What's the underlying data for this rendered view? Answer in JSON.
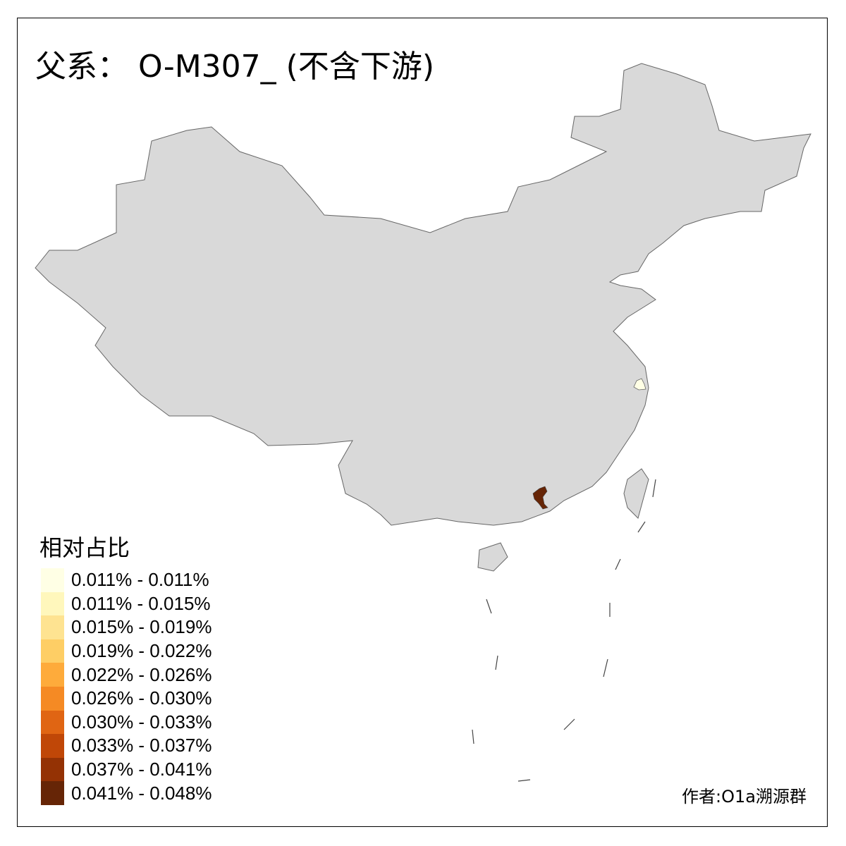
{
  "title": "父系： O-M307_ (不含下游)",
  "legend": {
    "title": "相对占比",
    "items": [
      {
        "label": "0.011% - 0.011%",
        "color": "#FFFFE5"
      },
      {
        "label": "0.011% - 0.015%",
        "color": "#FFF7BC"
      },
      {
        "label": "0.015% - 0.019%",
        "color": "#FEE391"
      },
      {
        "label": "0.019% - 0.022%",
        "color": "#FECE65"
      },
      {
        "label": "0.022% - 0.026%",
        "color": "#FEAB3B"
      },
      {
        "label": "0.026% - 0.030%",
        "color": "#F58A24"
      },
      {
        "label": "0.030% - 0.033%",
        "color": "#E06513"
      },
      {
        "label": "0.033% - 0.037%",
        "color": "#C04707"
      },
      {
        "label": "0.037% - 0.041%",
        "color": "#943204"
      },
      {
        "label": "0.041% - 0.048%",
        "color": "#662506"
      }
    ]
  },
  "map": {
    "base_fill": "#D9D9D9",
    "border_color": "#666666",
    "highlighted_regions": [
      {
        "fill": "#662506"
      },
      {
        "fill": "#FFFFE5"
      }
    ]
  },
  "author": "作者:O1a溯源群"
}
